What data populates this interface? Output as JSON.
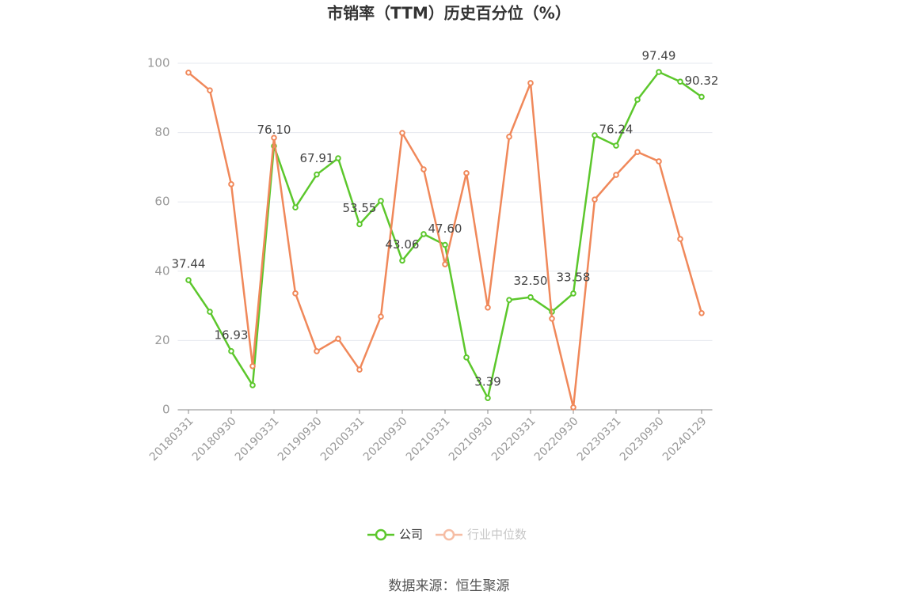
{
  "chart_data": {
    "type": "line",
    "title": "市销率（TTM）历史百分位（%）",
    "categories": [
      "20180331",
      null,
      "20180930",
      null,
      "20190331",
      null,
      "20190930",
      null,
      "20200331",
      null,
      "20200930",
      null,
      "20210331",
      null,
      "20210930",
      null,
      "20220331",
      null,
      "20220930",
      null,
      "20230331",
      null,
      "20230930",
      null,
      "20240129"
    ],
    "series": [
      {
        "name": "公司",
        "color": "#5cc72c",
        "values": [
          37.44,
          28.3,
          16.93,
          7.1,
          76.1,
          58.4,
          67.91,
          72.6,
          53.55,
          60.3,
          43.06,
          50.7,
          47.6,
          15.1,
          3.39,
          31.7,
          32.5,
          28.3,
          33.58,
          79.2,
          76.24,
          89.5,
          97.49,
          94.7,
          90.32
        ],
        "value_labels": [
          "37.44",
          null,
          "16.93",
          null,
          "76.10",
          null,
          "67.91",
          null,
          "53.55",
          null,
          "43.06",
          null,
          "47.60",
          null,
          "3.39",
          null,
          "32.50",
          null,
          "33.58",
          null,
          "76.24",
          null,
          "97.49",
          null,
          "90.32"
        ]
      },
      {
        "name": "行业中位数",
        "color": "#f0885a",
        "values": [
          97.3,
          92.2,
          65.1,
          12.6,
          78.5,
          33.6,
          16.9,
          20.5,
          11.6,
          26.9,
          79.9,
          69.4,
          42.0,
          68.3,
          29.5,
          78.8,
          94.3,
          26.3,
          0.7,
          60.7,
          67.8,
          74.4,
          71.7,
          49.3,
          27.9
        ]
      }
    ],
    "ylim": [
      0,
      100
    ],
    "yticks": [
      0,
      20,
      40,
      60,
      80,
      100
    ],
    "grid": true,
    "legend": "bottom",
    "source": "数据来源：恒生聚源"
  }
}
